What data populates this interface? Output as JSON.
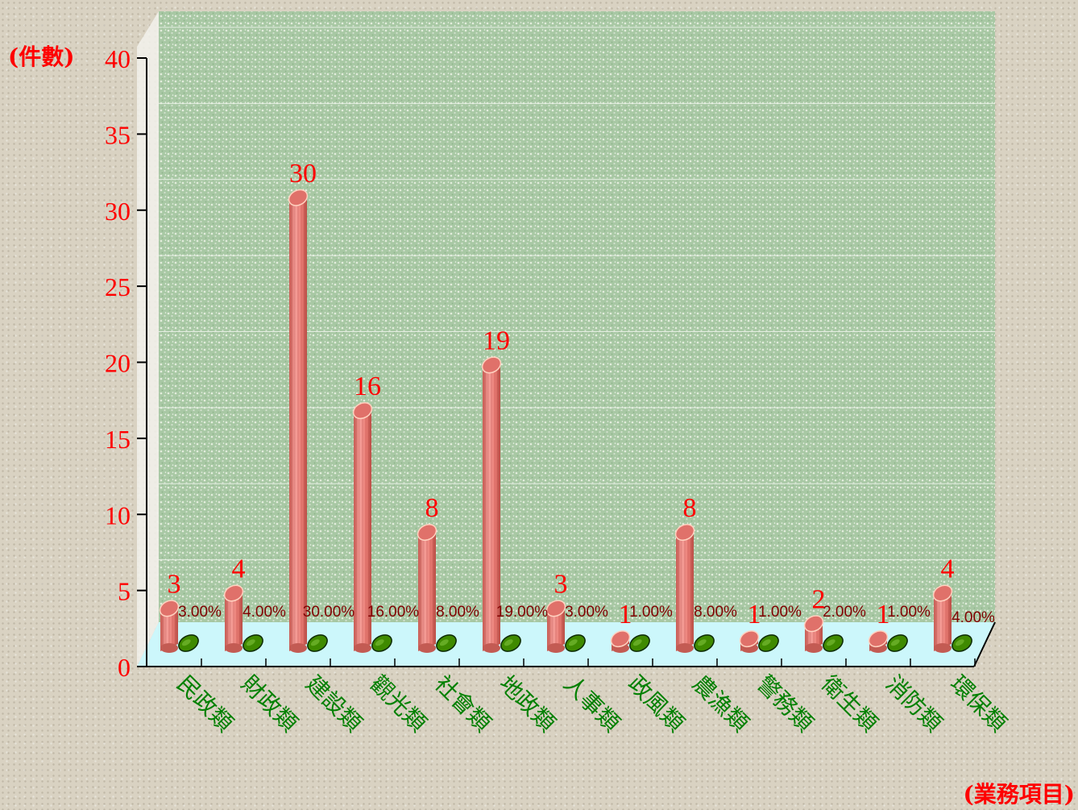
{
  "chart_data": {
    "type": "bar",
    "ylabel": "(件數)",
    "xlabel": "(業務項目)",
    "ylim": [
      0,
      40
    ],
    "yticks": [
      "0",
      "5",
      "10",
      "15",
      "20",
      "25",
      "30",
      "35",
      "40"
    ],
    "categories": [
      "民政類",
      "財政類",
      "建設類",
      "觀光類",
      "社會類",
      "地政類",
      "人事類",
      "政風類",
      "農漁類",
      "警務類",
      "衛生類",
      "消防類",
      "環保類"
    ],
    "values": [
      3,
      4,
      30,
      16,
      8,
      19,
      3,
      1,
      8,
      1,
      2,
      1,
      4
    ],
    "value_labels": [
      "3",
      "4",
      "30",
      "16",
      "8",
      "19",
      "3",
      "1",
      "8",
      "1",
      "2",
      "1",
      "4"
    ],
    "percent_labels": [
      "3.00%",
      "4.00%",
      "30.00%",
      "16.00%",
      "8.00%",
      "19.00%",
      "3.00%",
      "1.00%",
      "8.00%",
      "1.00%",
      "2.00%",
      "1.00%",
      "4.00%"
    ],
    "grid": true,
    "colors": {
      "bar": "#f08c84",
      "bar_dark": "#b84c44",
      "floor": "#ccf7fb",
      "wall": "#a9c9a6",
      "value_text": "#ff0000",
      "percent_text": "#800000",
      "category_text": "#008000",
      "disc": "#3f8a00"
    }
  }
}
